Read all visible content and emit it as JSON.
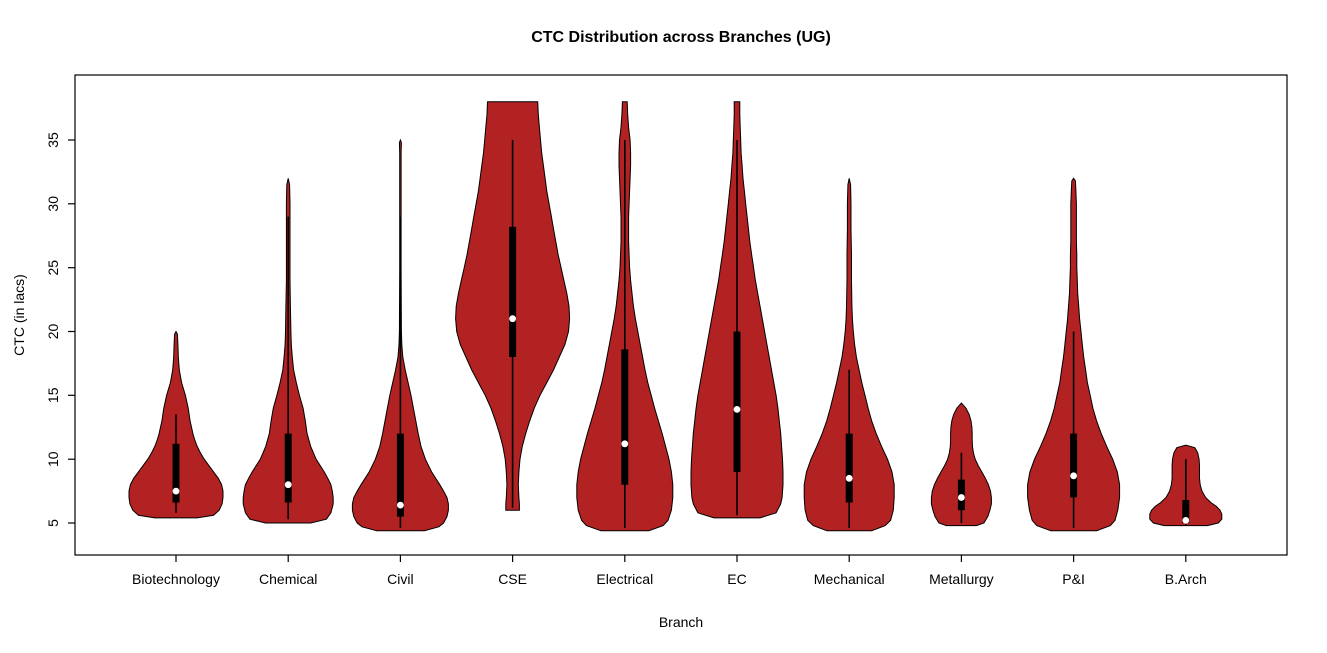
{
  "chart_data": {
    "type": "violin",
    "title": "CTC Distribution across Branches (UG)",
    "xlabel": "Branch",
    "ylabel": "CTC (in lacs)",
    "categories": [
      "Biotechnology",
      "Chemical",
      "Civil",
      "CSE",
      "Electrical",
      "EC",
      "Mechanical",
      "Metallurgy",
      "P&I",
      "B.Arch"
    ],
    "y_ticks": [
      5,
      10,
      15,
      20,
      25,
      30,
      35
    ],
    "ylim": [
      4,
      39
    ],
    "grid": false,
    "legend": "none",
    "colors": {
      "violin_fill": "#B22222",
      "violin_stroke": "#000000",
      "box": "#000000",
      "whisker": "#000000",
      "median_dot": "#FFFFFF",
      "axis": "#000000",
      "background": "#FFFFFF"
    },
    "series": [
      {
        "branch": "Biotechnology",
        "min": 5.4,
        "max": 20,
        "q1": 6.6,
        "q3": 11.2,
        "median": 7.5,
        "whisker_low": 5.8,
        "whisker_high": 13.5,
        "max_halfwidth": 47,
        "density": [
          [
            5.4,
            0.45
          ],
          [
            5.6,
            0.8
          ],
          [
            6,
            0.92
          ],
          [
            6.5,
            0.98
          ],
          [
            7,
            1.0
          ],
          [
            7.5,
            1.0
          ],
          [
            8,
            0.97
          ],
          [
            8.5,
            0.9
          ],
          [
            9,
            0.8
          ],
          [
            9.5,
            0.7
          ],
          [
            10,
            0.6
          ],
          [
            10.5,
            0.52
          ],
          [
            11,
            0.45
          ],
          [
            11.5,
            0.4
          ],
          [
            12,
            0.36
          ],
          [
            13,
            0.3
          ],
          [
            14,
            0.26
          ],
          [
            15,
            0.2
          ],
          [
            16,
            0.12
          ],
          [
            17,
            0.07
          ],
          [
            18,
            0.05
          ],
          [
            19,
            0.04
          ],
          [
            19.8,
            0.03
          ],
          [
            20,
            0.0
          ]
        ]
      },
      {
        "branch": "Chemical",
        "min": 5.0,
        "max": 32,
        "q1": 6.6,
        "q3": 12,
        "median": 8.0,
        "whisker_low": 5.3,
        "whisker_high": 29,
        "max_halfwidth": 45,
        "density": [
          [
            5.0,
            0.5
          ],
          [
            5.3,
            0.85
          ],
          [
            5.8,
            0.95
          ],
          [
            6.5,
            1.0
          ],
          [
            7,
            1.0
          ],
          [
            7.5,
            0.98
          ],
          [
            8,
            0.95
          ],
          [
            8.5,
            0.88
          ],
          [
            9,
            0.8
          ],
          [
            10,
            0.62
          ],
          [
            11,
            0.5
          ],
          [
            12,
            0.42
          ],
          [
            13,
            0.38
          ],
          [
            14,
            0.33
          ],
          [
            15,
            0.25
          ],
          [
            16,
            0.18
          ],
          [
            17,
            0.12
          ],
          [
            18,
            0.09
          ],
          [
            19,
            0.07
          ],
          [
            20,
            0.06
          ],
          [
            22,
            0.05
          ],
          [
            24,
            0.04
          ],
          [
            26,
            0.04
          ],
          [
            28,
            0.04
          ],
          [
            30,
            0.04
          ],
          [
            31.5,
            0.03
          ],
          [
            32,
            0.0
          ]
        ]
      },
      {
        "branch": "Civil",
        "min": 4.4,
        "max": 35,
        "q1": 5.5,
        "q3": 12,
        "median": 6.4,
        "whisker_low": 4.6,
        "whisker_high": 29,
        "max_halfwidth": 48,
        "density": [
          [
            4.4,
            0.5
          ],
          [
            4.7,
            0.8
          ],
          [
            5,
            0.9
          ],
          [
            5.5,
            0.97
          ],
          [
            6,
            1.0
          ],
          [
            6.5,
            1.0
          ],
          [
            7,
            0.97
          ],
          [
            7.5,
            0.9
          ],
          [
            8,
            0.82
          ],
          [
            9,
            0.65
          ],
          [
            10,
            0.52
          ],
          [
            11,
            0.43
          ],
          [
            12,
            0.37
          ],
          [
            13,
            0.32
          ],
          [
            14,
            0.27
          ],
          [
            15,
            0.22
          ],
          [
            16,
            0.16
          ],
          [
            17,
            0.1
          ],
          [
            18,
            0.05
          ],
          [
            19,
            0.03
          ],
          [
            20,
            0.02
          ],
          [
            25,
            0.015
          ],
          [
            30,
            0.015
          ],
          [
            34,
            0.015
          ],
          [
            34.8,
            0.02
          ],
          [
            35,
            0.0
          ]
        ]
      },
      {
        "branch": "CSE",
        "min": 6.0,
        "max": 38,
        "q1": 18,
        "q3": 28.2,
        "median": 21,
        "whisker_low": 6.2,
        "whisker_high": 35,
        "max_halfwidth": 57,
        "density": [
          [
            6.0,
            0.12
          ],
          [
            6.5,
            0.12
          ],
          [
            7,
            0.11
          ],
          [
            8,
            0.1
          ],
          [
            9,
            0.11
          ],
          [
            10,
            0.13
          ],
          [
            11,
            0.17
          ],
          [
            12,
            0.23
          ],
          [
            13,
            0.3
          ],
          [
            14,
            0.38
          ],
          [
            15,
            0.48
          ],
          [
            16,
            0.6
          ],
          [
            17,
            0.72
          ],
          [
            18,
            0.82
          ],
          [
            19,
            0.92
          ],
          [
            20,
            0.98
          ],
          [
            21,
            1.0
          ],
          [
            22,
            0.99
          ],
          [
            23,
            0.95
          ],
          [
            24,
            0.9
          ],
          [
            25,
            0.85
          ],
          [
            26,
            0.8
          ],
          [
            27,
            0.76
          ],
          [
            28,
            0.72
          ],
          [
            29,
            0.68
          ],
          [
            30,
            0.64
          ],
          [
            31,
            0.6
          ],
          [
            32,
            0.57
          ],
          [
            33,
            0.54
          ],
          [
            34,
            0.51
          ],
          [
            35,
            0.49
          ],
          [
            36,
            0.47
          ],
          [
            37,
            0.45
          ],
          [
            38,
            0.44
          ]
        ]
      },
      {
        "branch": "Electrical",
        "min": 4.4,
        "max": 38,
        "q1": 8,
        "q3": 18.6,
        "median": 11.2,
        "whisker_low": 4.6,
        "whisker_high": 35,
        "max_halfwidth": 48,
        "density": [
          [
            4.4,
            0.5
          ],
          [
            4.8,
            0.8
          ],
          [
            5.2,
            0.9
          ],
          [
            6,
            0.97
          ],
          [
            7,
            1.0
          ],
          [
            8,
            1.0
          ],
          [
            9,
            0.97
          ],
          [
            10,
            0.92
          ],
          [
            11,
            0.85
          ],
          [
            12,
            0.78
          ],
          [
            13,
            0.7
          ],
          [
            14,
            0.62
          ],
          [
            15,
            0.55
          ],
          [
            16,
            0.48
          ],
          [
            17,
            0.42
          ],
          [
            18,
            0.37
          ],
          [
            19,
            0.32
          ],
          [
            20,
            0.27
          ],
          [
            21,
            0.22
          ],
          [
            22,
            0.18
          ],
          [
            23,
            0.15
          ],
          [
            24,
            0.12
          ],
          [
            25,
            0.1
          ],
          [
            26,
            0.09
          ],
          [
            27,
            0.08
          ],
          [
            28,
            0.08
          ],
          [
            29,
            0.08
          ],
          [
            30,
            0.09
          ],
          [
            31,
            0.1
          ],
          [
            32,
            0.11
          ],
          [
            33,
            0.12
          ],
          [
            34,
            0.12
          ],
          [
            35,
            0.11
          ],
          [
            36,
            0.08
          ],
          [
            37,
            0.06
          ],
          [
            38,
            0.05
          ]
        ]
      },
      {
        "branch": "EC",
        "min": 5.4,
        "max": 38,
        "q1": 9,
        "q3": 20,
        "median": 13.9,
        "whisker_low": 5.6,
        "whisker_high": 35,
        "max_halfwidth": 46,
        "density": [
          [
            5.4,
            0.5
          ],
          [
            5.8,
            0.85
          ],
          [
            6.5,
            0.95
          ],
          [
            7,
            0.98
          ],
          [
            8,
            1.0
          ],
          [
            9,
            1.0
          ],
          [
            10,
            0.99
          ],
          [
            11,
            0.97
          ],
          [
            12,
            0.95
          ],
          [
            13,
            0.92
          ],
          [
            14,
            0.89
          ],
          [
            15,
            0.85
          ],
          [
            16,
            0.8
          ],
          [
            17,
            0.75
          ],
          [
            18,
            0.7
          ],
          [
            19,
            0.65
          ],
          [
            20,
            0.6
          ],
          [
            21,
            0.55
          ],
          [
            22,
            0.5
          ],
          [
            23,
            0.45
          ],
          [
            24,
            0.4
          ],
          [
            25,
            0.36
          ],
          [
            26,
            0.32
          ],
          [
            27,
            0.28
          ],
          [
            28,
            0.25
          ],
          [
            29,
            0.22
          ],
          [
            30,
            0.19
          ],
          [
            31,
            0.16
          ],
          [
            32,
            0.13
          ],
          [
            33,
            0.11
          ],
          [
            34,
            0.09
          ],
          [
            35,
            0.08
          ],
          [
            36,
            0.07
          ],
          [
            37,
            0.06
          ],
          [
            38,
            0.06
          ]
        ]
      },
      {
        "branch": "Mechanical",
        "min": 4.4,
        "max": 32,
        "q1": 6.6,
        "q3": 12,
        "median": 8.5,
        "whisker_low": 4.6,
        "whisker_high": 17,
        "max_halfwidth": 45,
        "density": [
          [
            4.4,
            0.5
          ],
          [
            4.8,
            0.8
          ],
          [
            5.2,
            0.92
          ],
          [
            6,
            0.98
          ],
          [
            7,
            1.0
          ],
          [
            8,
            1.0
          ],
          [
            9,
            0.95
          ],
          [
            10,
            0.85
          ],
          [
            11,
            0.72
          ],
          [
            12,
            0.6
          ],
          [
            13,
            0.5
          ],
          [
            14,
            0.42
          ],
          [
            15,
            0.35
          ],
          [
            16,
            0.28
          ],
          [
            17,
            0.22
          ],
          [
            18,
            0.16
          ],
          [
            19,
            0.12
          ],
          [
            20,
            0.09
          ],
          [
            21,
            0.07
          ],
          [
            22,
            0.06
          ],
          [
            24,
            0.05
          ],
          [
            26,
            0.05
          ],
          [
            28,
            0.04
          ],
          [
            30,
            0.04
          ],
          [
            31.5,
            0.03
          ],
          [
            32,
            0.0
          ]
        ]
      },
      {
        "branch": "Metallurgy",
        "min": 4.8,
        "max": 14.4,
        "q1": 6.0,
        "q3": 8.4,
        "median": 7.0,
        "whisker_low": 5.0,
        "whisker_high": 10.5,
        "max_halfwidth": 30,
        "density": [
          [
            4.8,
            0.5
          ],
          [
            5,
            0.75
          ],
          [
            5.5,
            0.88
          ],
          [
            6,
            0.95
          ],
          [
            6.5,
            1.0
          ],
          [
            7,
            1.0
          ],
          [
            7.5,
            0.97
          ],
          [
            8,
            0.9
          ],
          [
            8.5,
            0.8
          ],
          [
            9,
            0.68
          ],
          [
            9.5,
            0.56
          ],
          [
            10,
            0.46
          ],
          [
            10.5,
            0.4
          ],
          [
            11,
            0.37
          ],
          [
            11.5,
            0.36
          ],
          [
            12,
            0.36
          ],
          [
            12.5,
            0.35
          ],
          [
            13,
            0.32
          ],
          [
            13.5,
            0.26
          ],
          [
            14,
            0.15
          ],
          [
            14.4,
            0.0
          ]
        ]
      },
      {
        "branch": "P&I",
        "min": 4.4,
        "max": 32,
        "q1": 7.0,
        "q3": 12,
        "median": 8.7,
        "whisker_low": 4.6,
        "whisker_high": 20,
        "max_halfwidth": 46,
        "density": [
          [
            4.4,
            0.5
          ],
          [
            4.8,
            0.8
          ],
          [
            5.2,
            0.9
          ],
          [
            6,
            0.96
          ],
          [
            7,
            1.0
          ],
          [
            8,
            1.0
          ],
          [
            9,
            0.95
          ],
          [
            10,
            0.85
          ],
          [
            11,
            0.72
          ],
          [
            12,
            0.6
          ],
          [
            13,
            0.5
          ],
          [
            14,
            0.42
          ],
          [
            15,
            0.36
          ],
          [
            16,
            0.3
          ],
          [
            17,
            0.26
          ],
          [
            18,
            0.22
          ],
          [
            19,
            0.19
          ],
          [
            20,
            0.16
          ],
          [
            21,
            0.13
          ],
          [
            22,
            0.11
          ],
          [
            23,
            0.09
          ],
          [
            24,
            0.08
          ],
          [
            25,
            0.07
          ],
          [
            26,
            0.07
          ],
          [
            27,
            0.06
          ],
          [
            28,
            0.06
          ],
          [
            29,
            0.06
          ],
          [
            30,
            0.06
          ],
          [
            31,
            0.05
          ],
          [
            31.8,
            0.04
          ],
          [
            32,
            0.0
          ]
        ]
      },
      {
        "branch": "B.Arch",
        "min": 4.8,
        "max": 11.1,
        "q1": 5.0,
        "q3": 6.8,
        "median": 5.2,
        "whisker_low": 4.8,
        "whisker_high": 10,
        "max_halfwidth": 36,
        "density": [
          [
            4.8,
            0.6
          ],
          [
            5,
            0.9
          ],
          [
            5.3,
            1.0
          ],
          [
            5.7,
            1.0
          ],
          [
            6,
            0.95
          ],
          [
            6.3,
            0.85
          ],
          [
            6.6,
            0.7
          ],
          [
            7,
            0.55
          ],
          [
            7.5,
            0.45
          ],
          [
            8,
            0.4
          ],
          [
            8.5,
            0.38
          ],
          [
            9,
            0.38
          ],
          [
            9.5,
            0.38
          ],
          [
            10,
            0.37
          ],
          [
            10.5,
            0.33
          ],
          [
            10.9,
            0.25
          ],
          [
            11.1,
            0.0
          ]
        ]
      }
    ]
  }
}
